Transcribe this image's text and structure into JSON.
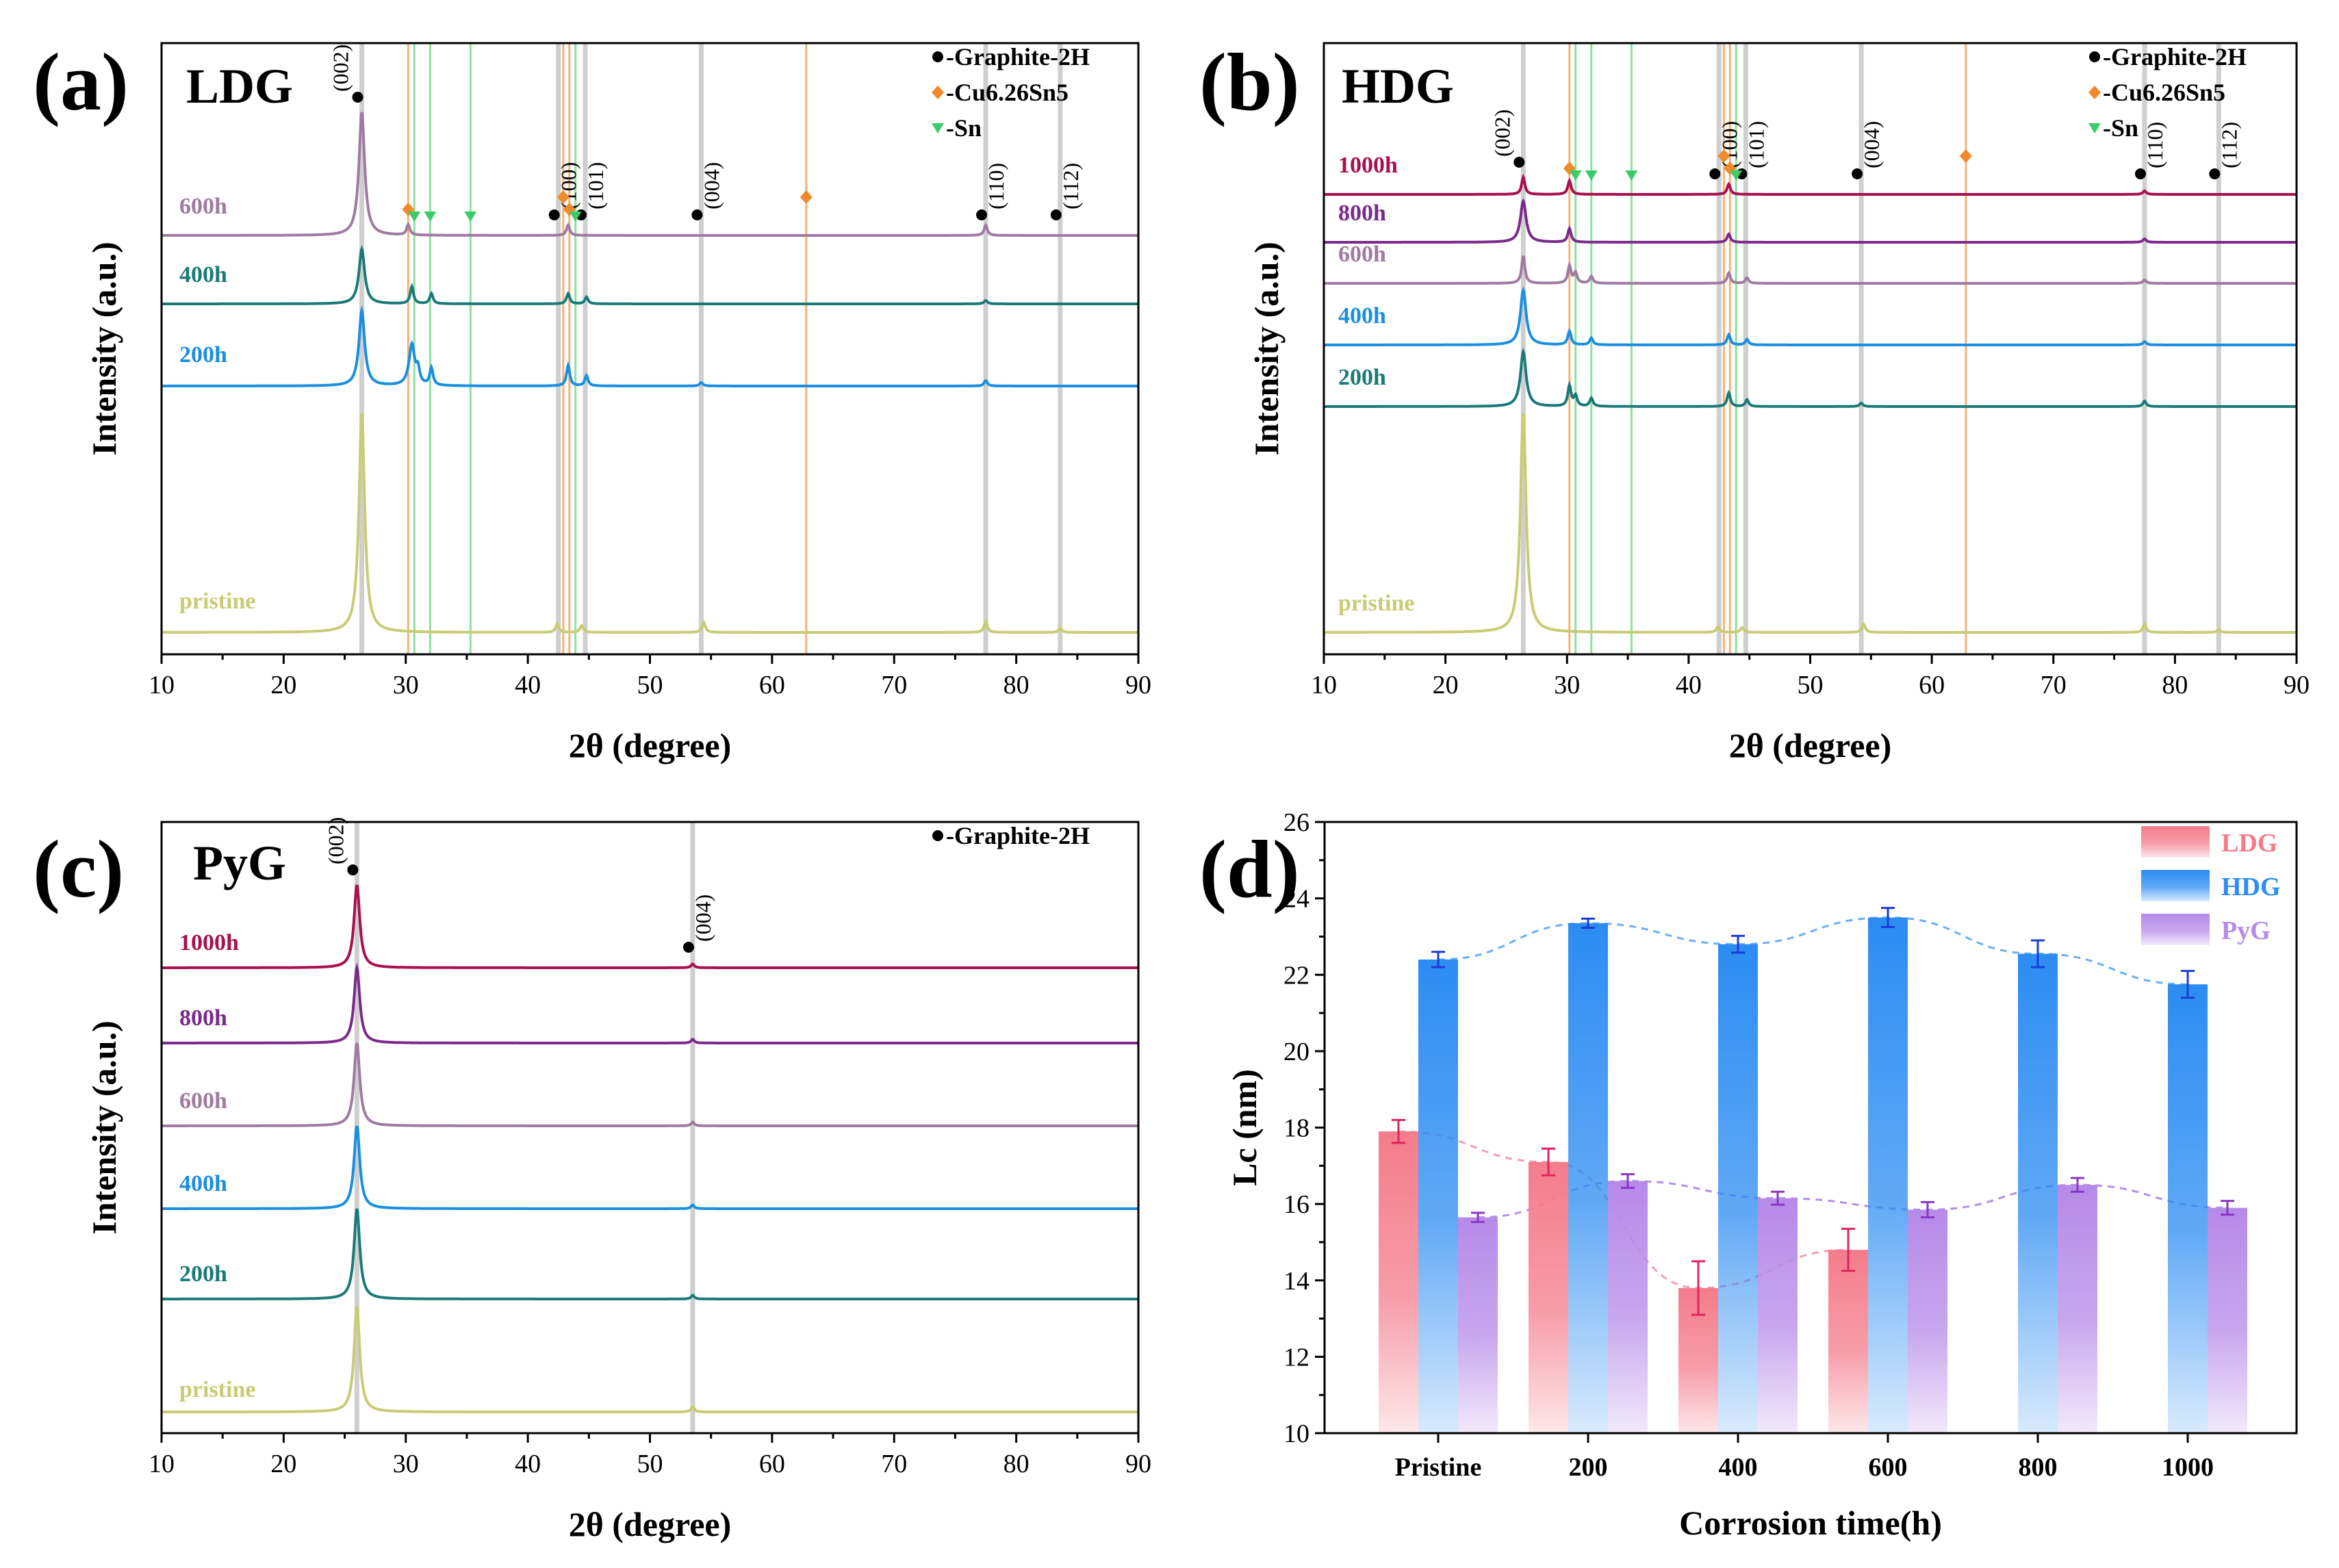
{
  "colors": {
    "pristine": "#c8cc74",
    "200h_a": "#1a8fe0",
    "400h_a": "#1a7a78",
    "600h": "#a07aa0",
    "200h_b": "#1a7a78",
    "400h_b": "#1a8fe0",
    "800h": "#7a2a8a",
    "1000h": "#a8104e",
    "graphite_line": "#cfcfcf",
    "cu_line": "#f7b27a",
    "sn_line": "#8fe0a0",
    "graphite_marker": "#000000",
    "cu_marker": "#f08a2a",
    "sn_marker": "#3acb6a",
    "ldg_bar": "#f47c8c",
    "hdg_bar": "#2c8cf2",
    "pyg_bar": "#b68ae8"
  },
  "chart_data": [
    {
      "type": "line",
      "panel": "(a)",
      "title": "LDG",
      "xlabel": "2θ (degree)",
      "ylabel": "Intensity (a.u.)",
      "xlim": [
        10,
        90
      ],
      "xticks": [
        "10",
        "20",
        "30",
        "40",
        "50",
        "60",
        "70",
        "80",
        "90"
      ],
      "legend": [
        "-Graphite-2H",
        "-Cu6.26Sn5",
        "-Sn"
      ],
      "series": [
        {
          "name": "pristine",
          "baseline": 0,
          "peaks": [
            [
              26.4,
              32
            ],
            [
              42.4,
              1.2
            ],
            [
              44.4,
              1.0
            ],
            [
              54.4,
              1.5
            ],
            [
              77.5,
              1.6
            ],
            [
              83.6,
              0.6
            ]
          ]
        },
        {
          "name": "200h",
          "baseline": 36,
          "peaks": [
            [
              26.4,
              11
            ],
            [
              30.5,
              6
            ],
            [
              31.0,
              2
            ],
            [
              32.1,
              2.5
            ],
            [
              43.3,
              3
            ],
            [
              44.8,
              1.5
            ],
            [
              54.2,
              0.5
            ],
            [
              77.5,
              0.8
            ]
          ]
        },
        {
          "name": "400h",
          "baseline": 48,
          "peaks": [
            [
              26.4,
              8
            ],
            [
              30.5,
              2.5
            ],
            [
              32.1,
              1.5
            ],
            [
              43.3,
              1.5
            ],
            [
              44.8,
              1.0
            ],
            [
              77.5,
              0.5
            ]
          ]
        },
        {
          "name": "600h",
          "baseline": 58,
          "peaks": [
            [
              26.4,
              18
            ],
            [
              30.2,
              1.5
            ],
            [
              43.3,
              1.5
            ],
            [
              77.5,
              1.5
            ]
          ]
        }
      ],
      "reflections": [
        {
          "hkl": "(002)",
          "pos": 26.4
        },
        {
          "hkl": "(100)",
          "pos": 42.5
        },
        {
          "hkl": "(101)",
          "pos": 44.7
        },
        {
          "hkl": "(004)",
          "pos": 54.2
        },
        {
          "hkl": "(110)",
          "pos": 77.5
        },
        {
          "hkl": "(112)",
          "pos": 83.6
        }
      ],
      "cu_positions": [
        30.2,
        42.9,
        43.4,
        62.8
      ],
      "sn_positions": [
        30.7,
        32.0,
        35.3,
        43.9
      ],
      "graphite_positions": [
        26.4,
        42.5,
        44.7,
        54.2,
        77.5,
        83.6
      ]
    },
    {
      "type": "line",
      "panel": "(b)",
      "title": "HDG",
      "xlabel": "2θ (degree)",
      "ylabel": "Intensity (a.u.)",
      "xlim": [
        10,
        90
      ],
      "xticks": [
        "10",
        "20",
        "30",
        "40",
        "50",
        "60",
        "70",
        "80",
        "90"
      ],
      "legend": [
        "-Graphite-2H",
        "-Cu6.26Sn5",
        "-Sn"
      ],
      "series": [
        {
          "name": "pristine",
          "baseline": 0,
          "peaks": [
            [
              26.4,
              32
            ],
            [
              42.4,
              0.8
            ],
            [
              44.4,
              0.7
            ],
            [
              54.4,
              1.2
            ],
            [
              77.5,
              1.2
            ],
            [
              83.6,
              0.4
            ]
          ]
        },
        {
          "name": "200h",
          "baseline": 33,
          "peaks": [
            [
              26.4,
              8
            ],
            [
              30.2,
              3
            ],
            [
              30.7,
              1.5
            ],
            [
              32.0,
              1.2
            ],
            [
              43.3,
              2
            ],
            [
              44.8,
              1.0
            ],
            [
              54.2,
              0.5
            ],
            [
              77.5,
              0.8
            ]
          ]
        },
        {
          "name": "400h",
          "baseline": 42,
          "peaks": [
            [
              26.4,
              8
            ],
            [
              30.2,
              2
            ],
            [
              32.0,
              1
            ],
            [
              43.3,
              1.5
            ],
            [
              44.8,
              0.8
            ],
            [
              77.5,
              0.5
            ]
          ]
        },
        {
          "name": "600h",
          "baseline": 51,
          "peaks": [
            [
              26.4,
              4
            ],
            [
              30.2,
              2.5
            ],
            [
              30.7,
              1.5
            ],
            [
              32.0,
              1.0
            ],
            [
              43.3,
              1.5
            ],
            [
              44.8,
              0.8
            ],
            [
              77.5,
              0.5
            ]
          ]
        },
        {
          "name": "800h",
          "baseline": 57,
          "peaks": [
            [
              26.4,
              6
            ],
            [
              30.2,
              2
            ],
            [
              43.3,
              1.2
            ],
            [
              77.5,
              0.5
            ]
          ]
        },
        {
          "name": "1000h",
          "baseline": 64,
          "peaks": [
            [
              26.4,
              2.5
            ],
            [
              30.2,
              2
            ],
            [
              43.3,
              1.5
            ],
            [
              77.5,
              0.5
            ]
          ]
        }
      ],
      "reflections": [
        {
          "hkl": "(002)",
          "pos": 26.4
        },
        {
          "hkl": "(100)",
          "pos": 42.5
        },
        {
          "hkl": "(101)",
          "pos": 44.7
        },
        {
          "hkl": "(004)",
          "pos": 54.2
        },
        {
          "hkl": "(110)",
          "pos": 77.5
        },
        {
          "hkl": "(112)",
          "pos": 83.6
        }
      ],
      "cu_positions": [
        30.2,
        42.9,
        43.4,
        62.8
      ],
      "sn_positions": [
        30.7,
        32.0,
        35.3,
        43.9
      ],
      "graphite_positions": [
        26.4,
        42.5,
        44.7,
        54.2,
        77.5,
        83.6
      ]
    },
    {
      "type": "line",
      "panel": "(c)",
      "title": "PyG",
      "xlabel": "2θ (degree)",
      "ylabel": "Intensity (a.u.)",
      "xlim": [
        10,
        90
      ],
      "xticks": [
        "10",
        "20",
        "30",
        "40",
        "50",
        "60",
        "70",
        "80",
        "90"
      ],
      "legend": [
        "-Graphite-2H"
      ],
      "series": [
        {
          "name": "pristine",
          "baseline": 0,
          "peaks": [
            [
              26.0,
              14
            ],
            [
              53.5,
              0.7
            ]
          ]
        },
        {
          "name": "200h",
          "baseline": 15,
          "peaks": [
            [
              26.0,
              12
            ],
            [
              53.5,
              0.5
            ]
          ]
        },
        {
          "name": "400h",
          "baseline": 27,
          "peaks": [
            [
              26.0,
              11
            ],
            [
              53.5,
              0.5
            ]
          ]
        },
        {
          "name": "600h",
          "baseline": 38,
          "peaks": [
            [
              26.0,
              11
            ],
            [
              53.5,
              0.5
            ]
          ]
        },
        {
          "name": "800h",
          "baseline": 49,
          "peaks": [
            [
              26.0,
              10
            ],
            [
              53.5,
              0.5
            ]
          ]
        },
        {
          "name": "1000h",
          "baseline": 59,
          "peaks": [
            [
              26.0,
              11
            ],
            [
              53.5,
              0.5
            ]
          ]
        }
      ],
      "reflections": [
        {
          "hkl": "(002)",
          "pos": 26.0
        },
        {
          "hkl": "(004)",
          "pos": 53.5
        }
      ],
      "cu_positions": [],
      "sn_positions": [],
      "graphite_positions": [
        26.0,
        53.5
      ]
    },
    {
      "type": "bar",
      "panel": "(d)",
      "xlabel": "Corrosion time(h)",
      "ylabel": "Lc (nm)",
      "ylim": [
        10,
        26
      ],
      "yticks": [
        "10",
        "12",
        "14",
        "16",
        "18",
        "20",
        "22",
        "24",
        "26"
      ],
      "categories": [
        "Pristine",
        "200",
        "400",
        "600",
        "800",
        "1000"
      ],
      "series": [
        {
          "name": "LDG",
          "values": [
            17.9,
            17.1,
            13.8,
            14.8,
            null,
            null
          ],
          "errors": [
            0.3,
            0.35,
            0.7,
            0.55,
            null,
            null
          ]
        },
        {
          "name": "HDG",
          "values": [
            22.4,
            23.35,
            22.8,
            23.5,
            22.55,
            21.75
          ],
          "errors": [
            0.2,
            0.12,
            0.22,
            0.25,
            0.35,
            0.35
          ]
        },
        {
          "name": "PyG",
          "values": [
            15.65,
            16.6,
            16.15,
            15.85,
            16.5,
            15.9
          ],
          "errors": [
            0.12,
            0.18,
            0.17,
            0.2,
            0.18,
            0.18
          ]
        }
      ]
    }
  ]
}
